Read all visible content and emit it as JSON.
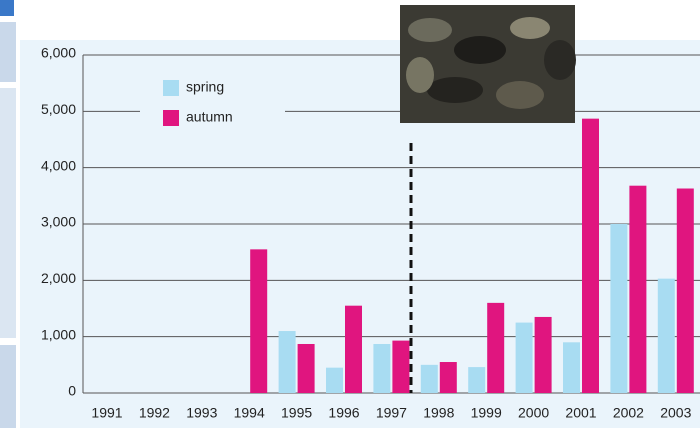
{
  "chart_data": {
    "type": "bar",
    "categories": [
      "1991",
      "1992",
      "1993",
      "1994",
      "1995",
      "1996",
      "1997",
      "1998",
      "1999",
      "2000",
      "2001",
      "2002",
      "2003"
    ],
    "series": [
      {
        "name": "spring",
        "color": "#a8dcf2",
        "values": [
          null,
          null,
          null,
          null,
          1100,
          450,
          870,
          500,
          460,
          1250,
          900,
          3000,
          2030
        ]
      },
      {
        "name": "autumn",
        "color": "#e0157f",
        "values": [
          null,
          null,
          null,
          2550,
          870,
          1550,
          930,
          550,
          1600,
          1350,
          4870,
          3680,
          3630
        ]
      }
    ],
    "ylim": [
      0,
      6000
    ],
    "yticks": [
      0,
      {
        "value": 1000,
        "label": "1,000"
      },
      {
        "value": 2000,
        "label": "2,000"
      },
      {
        "value": 3000,
        "label": "3,000"
      },
      {
        "value": 4000,
        "label": "4,000"
      },
      {
        "value": 5000,
        "label": "5,000"
      },
      {
        "value": 6000,
        "label": "6,000"
      }
    ],
    "grid": true
  }
}
